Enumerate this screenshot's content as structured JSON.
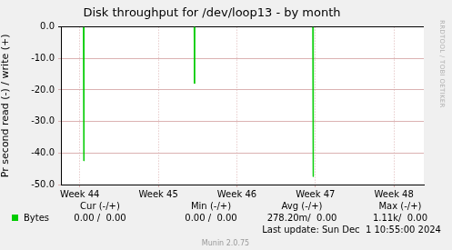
{
  "chart_data": {
    "type": "line",
    "title": "Disk throughput for /dev/loop13 - by month",
    "y_label": "Pr second read (-) / write (+)",
    "x": [
      43.76,
      44.045,
      44.05,
      44.055,
      45.0,
      45.455,
      45.46,
      45.465,
      46.5,
      46.965,
      46.97,
      46.975,
      48.38
    ],
    "series": [
      {
        "name": "Bytes",
        "color": "#00cc00",
        "values": [
          null,
          0,
          -42.5,
          0,
          null,
          0,
          -18,
          0,
          null,
          0,
          -47.5,
          0,
          null
        ]
      }
    ],
    "xlim": [
      43.76,
      48.38
    ],
    "xticks": [
      {
        "value": 44,
        "label": "Week 44"
      },
      {
        "value": 45,
        "label": "Week 45"
      },
      {
        "value": 46,
        "label": "Week 46"
      },
      {
        "value": 47,
        "label": "Week 47"
      },
      {
        "value": 48,
        "label": "Week 48"
      }
    ],
    "ylim": [
      -50,
      0
    ],
    "yticks": [
      {
        "value": 0,
        "label": "0.0"
      },
      {
        "value": -10,
        "label": "-10.0"
      },
      {
        "value": -20,
        "label": "-20.0"
      },
      {
        "value": -30,
        "label": "-30.0"
      },
      {
        "value": -40,
        "label": "-40.0"
      },
      {
        "value": -50,
        "label": "-50.0"
      }
    ],
    "grid": true,
    "summary": {
      "headers": [
        "Cur (-/+)",
        "Min (-/+)",
        "Avg (-/+)",
        "Max (-/+)"
      ],
      "values": [
        "0.00 /  0.00",
        "0.00 /  0.00",
        "278.20m/  0.00",
        "1.11k/  0.00"
      ]
    },
    "last_update": "Last update: Sun Dec  1 10:55:00 2024",
    "generator": "Munin 2.0.75",
    "watermark": "RRDTOOL / TOBI OETIKER"
  }
}
